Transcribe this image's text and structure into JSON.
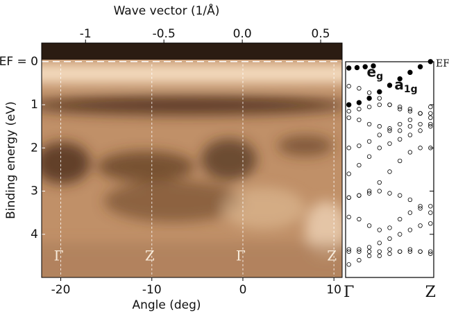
{
  "chart_data": [
    {
      "type": "image",
      "xlabel": "Angle (deg)",
      "x2label": "Wave vector (1/Å)",
      "ylabel": "Binding energy (eV)",
      "xlim": [
        -22.1,
        10.9
      ],
      "xticks": [
        -20,
        -10,
        0,
        10
      ],
      "x2lim": [
        -1.28,
        0.637
      ],
      "x2ticks": [
        -1,
        -0.5,
        {
          "value": 0,
          "label": "0.0"
        },
        0.5
      ],
      "ylim": [
        -0.43,
        5.0
      ],
      "y_inverted": true,
      "yticks": [
        {
          "value": 0,
          "label": "EF = 0"
        },
        1,
        2,
        3,
        4
      ],
      "points": [
        {
          "label": "Γ",
          "x": -20
        },
        {
          "label": "Z",
          "x": -10
        },
        {
          "label": "Γ",
          "x": 0
        },
        {
          "label": "Z",
          "x": 10
        }
      ]
    },
    {
      "type": "scatter",
      "xlim": [
        -0.04,
        1.04
      ],
      "xticks": [
        {
          "value": 0,
          "label": "Γ"
        },
        {
          "value": 1,
          "label": "Z"
        }
      ],
      "ylim": [
        -0.43,
        5.0
      ],
      "y_inverted": true,
      "yticks": [
        1,
        2,
        3,
        4
      ],
      "ylabel_right": "EF",
      "annotations": [
        {
          "text": "e",
          "sub": "g",
          "x": 0.32,
          "y": 0.25
        },
        {
          "text": "a",
          "sub": "1g",
          "x": 0.7,
          "y": 0.55
        }
      ],
      "series": [
        {
          "color": "#000000",
          "filled": true,
          "x": [
            0,
            0.1,
            0.2,
            0.3
          ],
          "values": [
            0.15,
            0.14,
            0.12,
            0.1
          ]
        },
        {
          "color": "#000000",
          "filled": true,
          "x": [
            0,
            0.125,
            0.25,
            0.375,
            0.5,
            0.625,
            0.75,
            0.875,
            1
          ],
          "values": [
            1.0,
            0.95,
            0.85,
            0.7,
            0.55,
            0.4,
            0.25,
            0.12,
            0.0
          ]
        },
        {
          "color": "#000000",
          "filled": false,
          "x": [
            0,
            0.125,
            0.25,
            0.375,
            0.5,
            0.625,
            0.75,
            0.875,
            1
          ],
          "values": [
            0.57,
            0.62,
            0.72,
            0.85,
            1.0,
            1.1,
            1.15,
            1.2,
            1.2
          ]
        },
        {
          "color": "#000000",
          "filled": false,
          "x": [
            0,
            0.125,
            0.25,
            0.375,
            0.5,
            0.625,
            0.75,
            0.875,
            1
          ],
          "values": [
            1.15,
            1.1,
            1.05,
            1.0,
            1.0,
            1.05,
            1.1,
            1.2,
            1.3
          ]
        },
        {
          "color": "#000000",
          "filled": false,
          "x": [
            0,
            0.125,
            0.25,
            0.375,
            0.5,
            0.625,
            0.75,
            0.875,
            1
          ],
          "values": [
            1.3,
            1.35,
            1.45,
            1.5,
            1.55,
            1.45,
            1.35,
            1.2,
            1.05
          ]
        },
        {
          "color": "#000000",
          "filled": false,
          "x": [
            0,
            0.125,
            0.25,
            0.375,
            0.5,
            0.625,
            0.75,
            0.875,
            1
          ],
          "values": [
            2.0,
            1.95,
            1.85,
            1.7,
            1.6,
            1.6,
            1.5,
            1.45,
            1.45
          ]
        },
        {
          "color": "#000000",
          "filled": false,
          "x": [
            0,
            0.125,
            0.25,
            0.375,
            0.5,
            0.625,
            0.75,
            0.875,
            1
          ],
          "values": [
            2.6,
            2.4,
            2.2,
            2.0,
            1.9,
            1.8,
            1.7,
            1.6,
            1.5
          ]
        },
        {
          "color": "#000000",
          "filled": false,
          "x": [
            0,
            0.125,
            0.25,
            0.375,
            0.5,
            0.625,
            0.75,
            0.875,
            1
          ],
          "values": [
            3.15,
            3.1,
            3.0,
            2.8,
            2.55,
            2.3,
            2.1,
            2.0,
            2.0
          ]
        },
        {
          "color": "#000000",
          "filled": false,
          "x": [
            0,
            0.125,
            0.25,
            0.375,
            0.5,
            0.625,
            0.75,
            0.875,
            1
          ],
          "values": [
            3.6,
            3.65,
            3.8,
            3.9,
            3.85,
            3.65,
            3.5,
            3.4,
            3.35
          ]
        },
        {
          "color": "#000000",
          "filled": false,
          "x": [
            0,
            0.125,
            0.25,
            0.375,
            0.5,
            0.625,
            0.75,
            0.875,
            1
          ],
          "values": [
            3.15,
            3.1,
            3.05,
            3.0,
            3.05,
            3.1,
            3.2,
            3.35,
            3.5
          ]
        },
        {
          "color": "#000000",
          "filled": false,
          "x": [
            0,
            0.125,
            0.25,
            0.375,
            0.5,
            0.625,
            0.75,
            0.875,
            1
          ],
          "values": [
            4.35,
            4.35,
            4.3,
            4.2,
            4.1,
            4.0,
            3.9,
            3.8,
            3.75
          ]
        },
        {
          "color": "#000000",
          "filled": false,
          "x": [
            0,
            0.125,
            0.25,
            0.375,
            0.5,
            0.625,
            0.75,
            0.875,
            1
          ],
          "values": [
            4.4,
            4.4,
            4.4,
            4.4,
            4.35,
            4.4,
            4.4,
            4.4,
            4.4
          ]
        },
        {
          "color": "#000000",
          "filled": false,
          "x": [
            0,
            0.125,
            0.25,
            0.375,
            0.5,
            0.625,
            0.75,
            0.875,
            1
          ],
          "values": [
            4.7,
            4.6,
            4.5,
            4.5,
            4.45,
            4.4,
            4.35,
            4.4,
            4.45
          ]
        }
      ]
    }
  ]
}
